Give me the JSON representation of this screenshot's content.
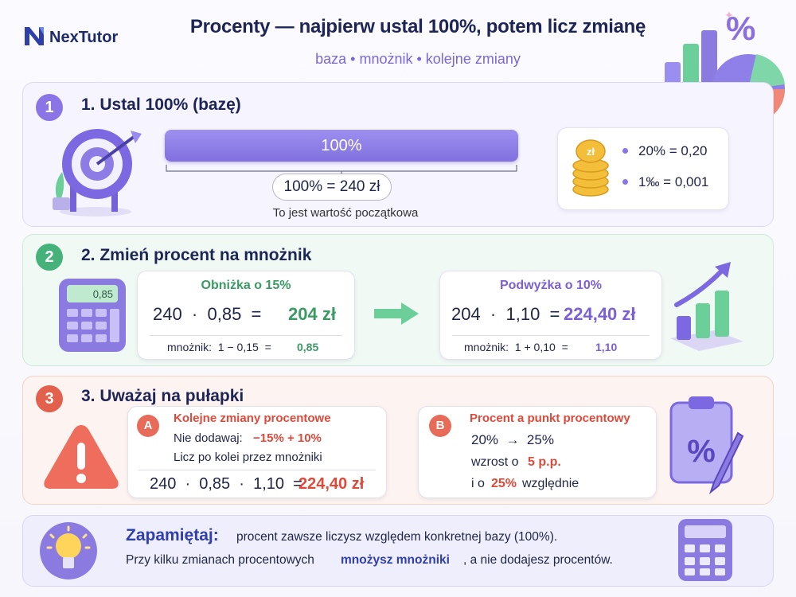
{
  "header": {
    "logo": "NexTutor",
    "title": "Procenty — najpierw ustal 100%, potem licz zmianę",
    "subtitle": "baza • mnożnik • kolejne zmiany",
    "decor_symbol": "%"
  },
  "sections": [
    {
      "number": "1",
      "title": "1. Ustal 100% (bazę)",
      "bar_label": "100%",
      "base": "100% = 240 zł",
      "caption": "To jest wartość początkowa",
      "coin_label": "zł",
      "conversions": [
        "20% = 0,20",
        "1‰ = 0,001"
      ]
    },
    {
      "number": "2",
      "title": "2. Zmień procent na mnożnik",
      "calculator_display": "0,85",
      "cards": [
        {
          "heading": "Obniżka o 15%",
          "expression": "240  ·  0,85  =",
          "result": "204 zł",
          "note": "mnożnik:  1 − 0,15  =",
          "note_result": "0,85"
        },
        {
          "heading": "Podwyżka o 10%",
          "expression": "204  ·  1,10  =",
          "result": "224,40 zł",
          "note": "mnożnik:  1 + 0,10  =",
          "note_result": "1,10"
        }
      ]
    },
    {
      "number": "3",
      "title": "3. Uważaj na pułapki",
      "card_a": {
        "badge": "A",
        "heading": "Kolejne zmiany procentowe",
        "warn": "Nie dodawaj:",
        "warn_expr": "−15% + 10%",
        "hint": "Licz po kolei przez mnożniki",
        "expression": "240  ·  0,85  ·  1,10  =",
        "result": "224,40 zł"
      },
      "card_b": {
        "badge": "B",
        "heading": "Procent a punkt procentowy",
        "change": "20%  →  25%",
        "pp_prefix": "wzrost o",
        "pp_value": "5 p.p.",
        "rel_prefix": "i o",
        "rel_value": "25%",
        "rel_suffix": "względnie"
      },
      "clipboard_symbol": "%"
    }
  ],
  "reminder": {
    "label": "Zapamiętaj:",
    "line1": "procent zawsze liczysz względem konkretnej bazy (100%).",
    "line2_start": "Przy kilku zmianach procentowych",
    "line2_bold": "mnożysz mnożniki",
    "line2_end": ", a nie dodajesz procentów."
  }
}
